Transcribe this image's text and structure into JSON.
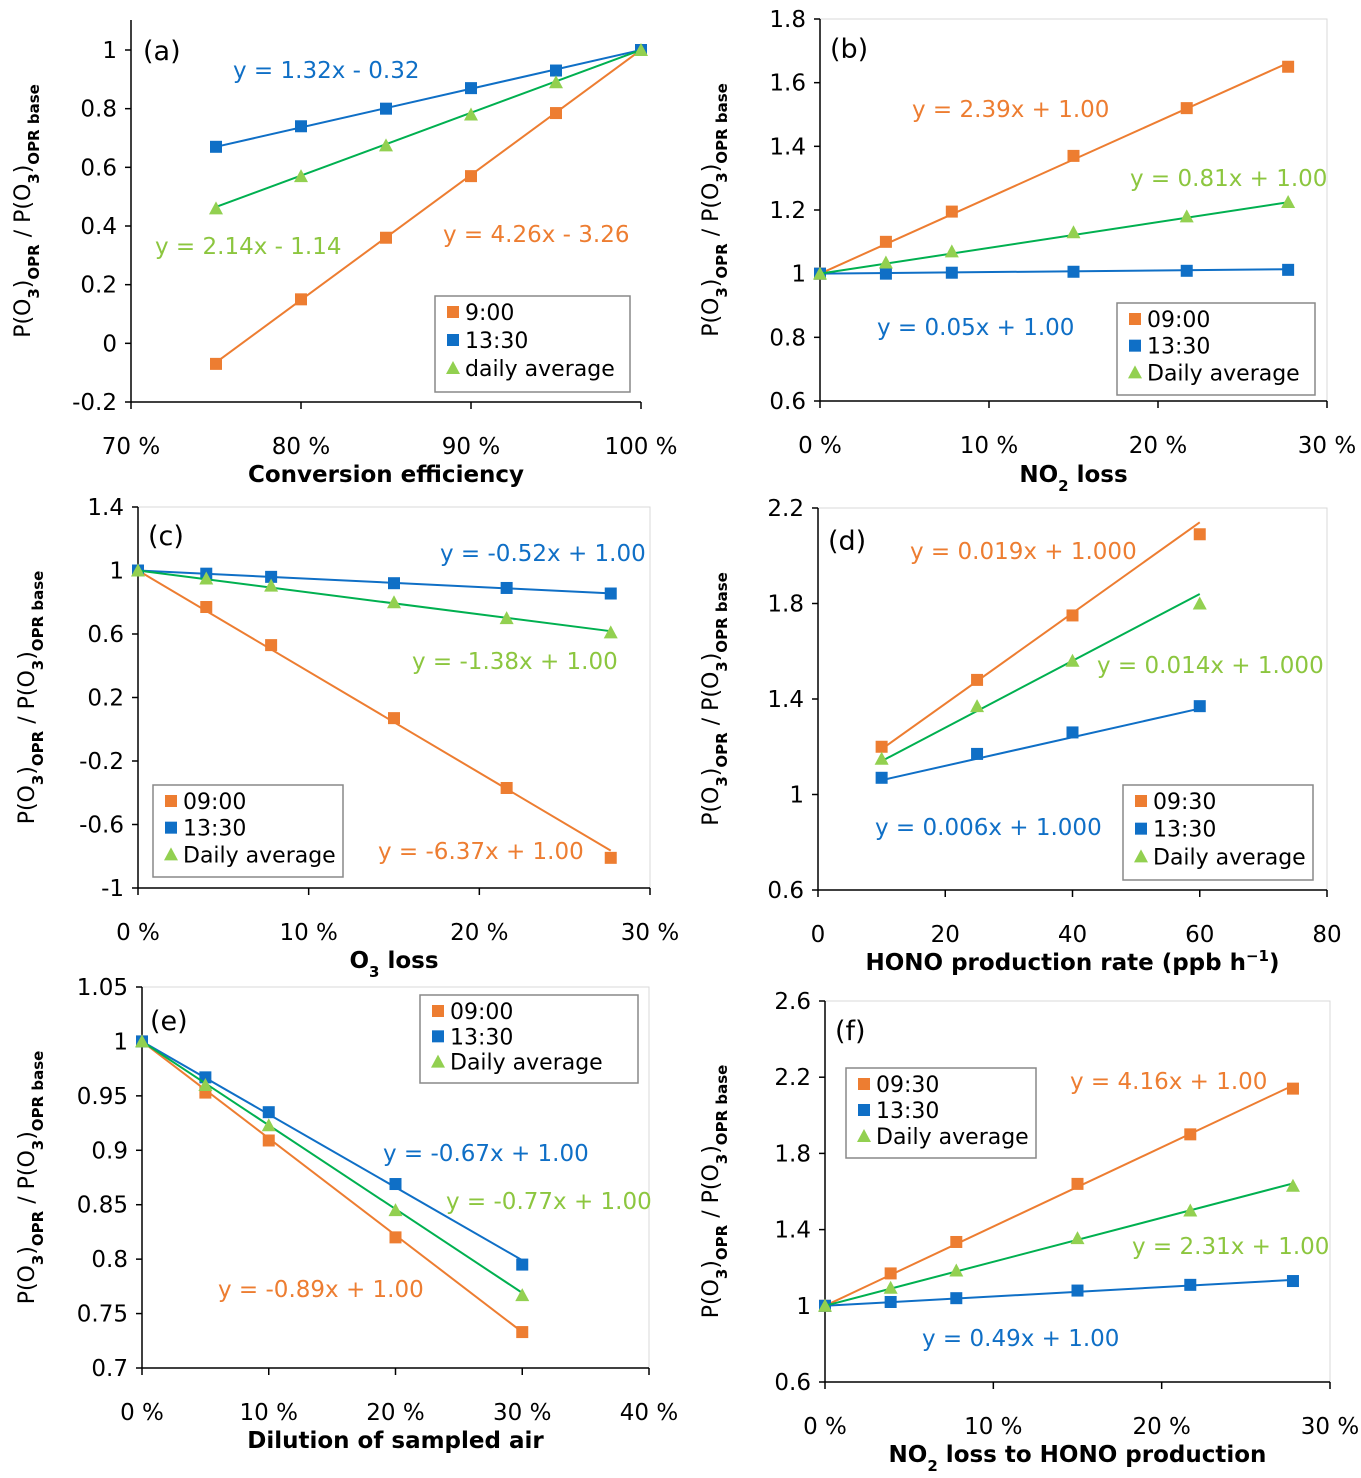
{
  "colors": {
    "orange": "#ed7d31",
    "blue": "#0f6fc6",
    "green_line": "#00b050",
    "green_marker": "#92d050",
    "green_text": "#8cc63f",
    "axis": "#000000"
  },
  "chart_data": [
    {
      "type": "scatter",
      "panel_label": "(a)",
      "xlabel": [
        {
          "t": "Conversion efficiency"
        }
      ],
      "ylabel": [
        {
          "t": "P(O"
        },
        {
          "t": "3",
          "sub": true
        },
        {
          "t": ")"
        },
        {
          "t": "OPR",
          "sub": true
        },
        {
          "t": " / P(O"
        },
        {
          "t": "3",
          "sub": true
        },
        {
          "t": ")"
        },
        {
          "t": "OPR base",
          "sub": true
        }
      ],
      "xlim": [
        0.7,
        1.0
      ],
      "ylim": [
        -0.2,
        1
      ],
      "xticks": [
        0.7,
        0.8,
        0.9,
        1.0
      ],
      "xtick_labels": [
        "70 %",
        "80 %",
        "90 %",
        "100 %"
      ],
      "yticks": [
        -0.2,
        0,
        0.2,
        0.4,
        0.6,
        0.8,
        1
      ],
      "ytick_labels": [
        "-0.2",
        "0",
        "0.2",
        "0.4",
        "0.6",
        "0.8",
        "1"
      ],
      "legend": "bottom-right",
      "x": [
        0.75,
        0.8,
        0.85,
        0.9,
        0.95,
        1.0
      ],
      "series": [
        {
          "name": "9:00",
          "color": "orange",
          "marker": "square",
          "values": [
            -0.07,
            0.15,
            0.36,
            0.57,
            0.785,
            1.0
          ],
          "trend": {
            "slope": 4.26,
            "intercept": -3.26,
            "label": "y = 4.26x - 3.26"
          }
        },
        {
          "name": "13:30",
          "color": "blue",
          "marker": "square",
          "values": [
            0.67,
            0.74,
            0.8,
            0.87,
            0.93,
            1.0
          ],
          "trend": {
            "slope": 1.32,
            "intercept": -0.32,
            "label": "y = 1.32x - 0.32"
          }
        },
        {
          "name": "daily average",
          "color": "green",
          "marker": "triangle",
          "values": [
            0.46,
            0.57,
            0.675,
            0.78,
            0.89,
            1.0
          ],
          "trend": {
            "slope": 2.14,
            "intercept": -1.14,
            "label": "y = 2.14x - 1.14"
          }
        }
      ]
    },
    {
      "type": "scatter",
      "panel_label": "(b)",
      "xlabel": [
        {
          "t": "NO"
        },
        {
          "t": "2",
          "sub": true
        },
        {
          "t": " loss"
        }
      ],
      "ylabel": [
        {
          "t": "P(O"
        },
        {
          "t": "3",
          "sub": true
        },
        {
          "t": ")"
        },
        {
          "t": "OPR",
          "sub": true
        },
        {
          "t": " / P(O"
        },
        {
          "t": "3",
          "sub": true
        },
        {
          "t": ")"
        },
        {
          "t": "OPR base",
          "sub": true
        }
      ],
      "xlim": [
        0,
        0.3
      ],
      "ylim": [
        0.6,
        1.8
      ],
      "xticks": [
        0,
        0.1,
        0.2,
        0.3
      ],
      "xtick_labels": [
        "0 %",
        "10 %",
        "20 %",
        "30 %"
      ],
      "yticks": [
        0.6,
        0.8,
        1,
        1.2,
        1.4,
        1.6,
        1.8
      ],
      "ytick_labels": [
        "0.6",
        "0.8",
        "1",
        "1.2",
        "1.4",
        "1.6",
        "1.8"
      ],
      "legend": "bottom-right",
      "x": [
        0,
        0.039,
        0.078,
        0.15,
        0.217,
        0.277
      ],
      "series": [
        {
          "name": "09:00",
          "color": "orange",
          "marker": "square",
          "values": [
            1.0,
            1.1,
            1.195,
            1.37,
            1.52,
            1.65
          ],
          "trend": {
            "slope": 2.39,
            "intercept": 1.0,
            "label": "y = 2.39x + 1.00"
          }
        },
        {
          "name": "13:30",
          "color": "blue",
          "marker": "square",
          "values": [
            1.0,
            1.0,
            1.003,
            1.006,
            1.009,
            1.012
          ],
          "trend": {
            "slope": 0.05,
            "intercept": 1.0,
            "label": "y = 0.05x + 1.00"
          }
        },
        {
          "name": "Daily average",
          "color": "green",
          "marker": "triangle",
          "values": [
            1.0,
            1.035,
            1.07,
            1.13,
            1.18,
            1.225
          ],
          "trend": {
            "slope": 0.81,
            "intercept": 1.0,
            "label": "y = 0.81x + 1.00"
          }
        }
      ]
    },
    {
      "type": "scatter",
      "panel_label": "(c)",
      "xlabel": [
        {
          "t": "O"
        },
        {
          "t": "3",
          "sub": true
        },
        {
          "t": " loss"
        }
      ],
      "ylabel": [
        {
          "t": "P(O"
        },
        {
          "t": "3",
          "sub": true
        },
        {
          "t": ")"
        },
        {
          "t": "OPR",
          "sub": true
        },
        {
          "t": " / P(O"
        },
        {
          "t": "3",
          "sub": true
        },
        {
          "t": ")"
        },
        {
          "t": "OPR base",
          "sub": true
        }
      ],
      "xlim": [
        0,
        0.3
      ],
      "ylim": [
        -1,
        1.4
      ],
      "xticks": [
        0,
        0.1,
        0.2,
        0.3
      ],
      "xtick_labels": [
        "0 %",
        "10 %",
        "20 %",
        "30 %"
      ],
      "yticks": [
        -1,
        -0.6,
        -0.2,
        0.2,
        0.6,
        1,
        1.4
      ],
      "ytick_labels": [
        "-1",
        "-0.6",
        "-0.2",
        "0.2",
        "0.6",
        "1",
        "1.4"
      ],
      "legend": "bottom-left",
      "x": [
        0,
        0.04,
        0.078,
        0.15,
        0.216,
        0.277
      ],
      "series": [
        {
          "name": "09:00",
          "color": "orange",
          "marker": "square",
          "values": [
            1.0,
            0.77,
            0.53,
            0.07,
            -0.37,
            -0.81
          ],
          "trend": {
            "slope": -6.37,
            "intercept": 1.0,
            "label": "y = -6.37x + 1.00"
          }
        },
        {
          "name": "13:30",
          "color": "blue",
          "marker": "square",
          "values": [
            1.0,
            0.98,
            0.96,
            0.92,
            0.89,
            0.855
          ],
          "trend": {
            "slope": -0.52,
            "intercept": 1.0,
            "label": "y = -0.52x + 1.00"
          }
        },
        {
          "name": "Daily average",
          "color": "green",
          "marker": "triangle",
          "values": [
            1.0,
            0.95,
            0.905,
            0.8,
            0.7,
            0.61
          ],
          "trend": {
            "slope": -1.38,
            "intercept": 1.0,
            "label": "y = -1.38x + 1.00"
          }
        }
      ]
    },
    {
      "type": "scatter",
      "panel_label": "(d)",
      "xlabel": [
        {
          "t": "HONO production rate (ppb h"
        },
        {
          "t": "−1",
          "sup": true
        },
        {
          "t": ")"
        }
      ],
      "ylabel": [
        {
          "t": "P(O"
        },
        {
          "t": "3",
          "sub": true
        },
        {
          "t": ")"
        },
        {
          "t": "OPR",
          "sub": true
        },
        {
          "t": " / P(O"
        },
        {
          "t": "3",
          "sub": true
        },
        {
          "t": ")"
        },
        {
          "t": "OPR base",
          "sub": true
        }
      ],
      "xlim": [
        0,
        80
      ],
      "ylim": [
        0.6,
        2.2
      ],
      "xticks": [
        0,
        20,
        40,
        60,
        80
      ],
      "xtick_labels": [
        "0",
        "20",
        "40",
        "60",
        "80"
      ],
      "yticks": [
        0.6,
        1,
        1.4,
        1.8,
        2.2
      ],
      "ytick_labels": [
        "0.6",
        "1",
        "1.4",
        "1.8",
        "2.2"
      ],
      "legend": "bottom-right",
      "x": [
        10,
        25,
        40,
        60
      ],
      "series": [
        {
          "name": "09:30",
          "color": "orange",
          "marker": "square",
          "values": [
            1.2,
            1.48,
            1.75,
            2.09
          ],
          "trend": {
            "slope": 0.019,
            "intercept": 1.0,
            "label": "y = 0.019x + 1.000"
          }
        },
        {
          "name": "13:30",
          "color": "blue",
          "marker": "square",
          "values": [
            1.07,
            1.17,
            1.26,
            1.37
          ],
          "trend": {
            "slope": 0.006,
            "intercept": 1.0,
            "label": "y = 0.006x + 1.000"
          }
        },
        {
          "name": "Daily average",
          "color": "green",
          "marker": "triangle",
          "values": [
            1.15,
            1.37,
            1.56,
            1.8
          ],
          "trend": {
            "slope": 0.014,
            "intercept": 1.0,
            "label": "y = 0.014x + 1.000"
          }
        }
      ]
    },
    {
      "type": "scatter",
      "panel_label": "(e)",
      "xlabel": [
        {
          "t": "Dilution of sampled air"
        }
      ],
      "ylabel": [
        {
          "t": "P(O"
        },
        {
          "t": "3",
          "sub": true
        },
        {
          "t": ")"
        },
        {
          "t": "OPR",
          "sub": true
        },
        {
          "t": " / P(O"
        },
        {
          "t": "3",
          "sub": true
        },
        {
          "t": ")"
        },
        {
          "t": "OPR base",
          "sub": true
        }
      ],
      "xlim": [
        0,
        0.4
      ],
      "ylim": [
        0.7,
        1.05
      ],
      "xticks": [
        0,
        0.1,
        0.2,
        0.3,
        0.4
      ],
      "xtick_labels": [
        "0 %",
        "10 %",
        "20 %",
        "30 %",
        "40 %"
      ],
      "yticks": [
        0.7,
        0.75,
        0.8,
        0.85,
        0.9,
        0.95,
        1,
        1.05
      ],
      "ytick_labels": [
        "0.7",
        "0.75",
        "0.8",
        "0.85",
        "0.9",
        "0.95",
        "1",
        "1.05"
      ],
      "legend": "top-right",
      "x": [
        0,
        0.05,
        0.1,
        0.2,
        0.3
      ],
      "series": [
        {
          "name": "09:00",
          "color": "orange",
          "marker": "square",
          "values": [
            1.0,
            0.953,
            0.909,
            0.82,
            0.733
          ],
          "trend": {
            "slope": -0.89,
            "intercept": 1.0,
            "label": "y = -0.89x + 1.00"
          }
        },
        {
          "name": "13:30",
          "color": "blue",
          "marker": "square",
          "values": [
            1.0,
            0.967,
            0.935,
            0.869,
            0.795
          ],
          "trend": {
            "slope": -0.67,
            "intercept": 1.0,
            "label": "y = -0.67x + 1.00"
          }
        },
        {
          "name": "Daily average",
          "color": "green",
          "marker": "triangle",
          "values": [
            1.0,
            0.96,
            0.923,
            0.845,
            0.767
          ],
          "trend": {
            "slope": -0.77,
            "intercept": 1.0,
            "label": "y = -0.77x + 1.00"
          }
        }
      ]
    },
    {
      "type": "scatter",
      "panel_label": "(f)",
      "xlabel": [
        {
          "t": "NO"
        },
        {
          "t": "2",
          "sub": true
        },
        {
          "t": " loss to HONO production"
        }
      ],
      "ylabel": [
        {
          "t": "P(O"
        },
        {
          "t": "3",
          "sub": true
        },
        {
          "t": ")"
        },
        {
          "t": "OPR",
          "sub": true
        },
        {
          "t": " / P(O"
        },
        {
          "t": "3",
          "sub": true
        },
        {
          "t": ")"
        },
        {
          "t": "OPR base",
          "sub": true
        }
      ],
      "xlim": [
        0,
        0.3
      ],
      "ylim": [
        0.6,
        2.6
      ],
      "xticks": [
        0,
        0.1,
        0.2,
        0.3
      ],
      "xtick_labels": [
        "0 %",
        "10 %",
        "20 %",
        "30 %"
      ],
      "yticks": [
        0.6,
        1,
        1.4,
        1.8,
        2.2,
        2.6
      ],
      "ytick_labels": [
        "0.6",
        "1",
        "1.4",
        "1.8",
        "2.2",
        "2.6"
      ],
      "legend": "top-left",
      "x": [
        0,
        0.039,
        0.078,
        0.15,
        0.217,
        0.278
      ],
      "series": [
        {
          "name": "09:30",
          "color": "orange",
          "marker": "square",
          "values": [
            1.0,
            1.17,
            1.335,
            1.64,
            1.9,
            2.14
          ],
          "trend": {
            "slope": 4.16,
            "intercept": 1.0,
            "label": "y = 4.16x + 1.00"
          }
        },
        {
          "name": "13:30",
          "color": "blue",
          "marker": "square",
          "values": [
            1.0,
            1.02,
            1.04,
            1.08,
            1.11,
            1.13
          ],
          "trend": {
            "slope": 0.49,
            "intercept": 1.0,
            "label": "y = 0.49x + 1.00"
          }
        },
        {
          "name": "Daily average",
          "color": "green",
          "marker": "triangle",
          "values": [
            1.0,
            1.095,
            1.185,
            1.355,
            1.5,
            1.63
          ],
          "trend": {
            "slope": 2.31,
            "intercept": 1.0,
            "label": "y = 2.31x + 1.00"
          }
        }
      ]
    }
  ]
}
